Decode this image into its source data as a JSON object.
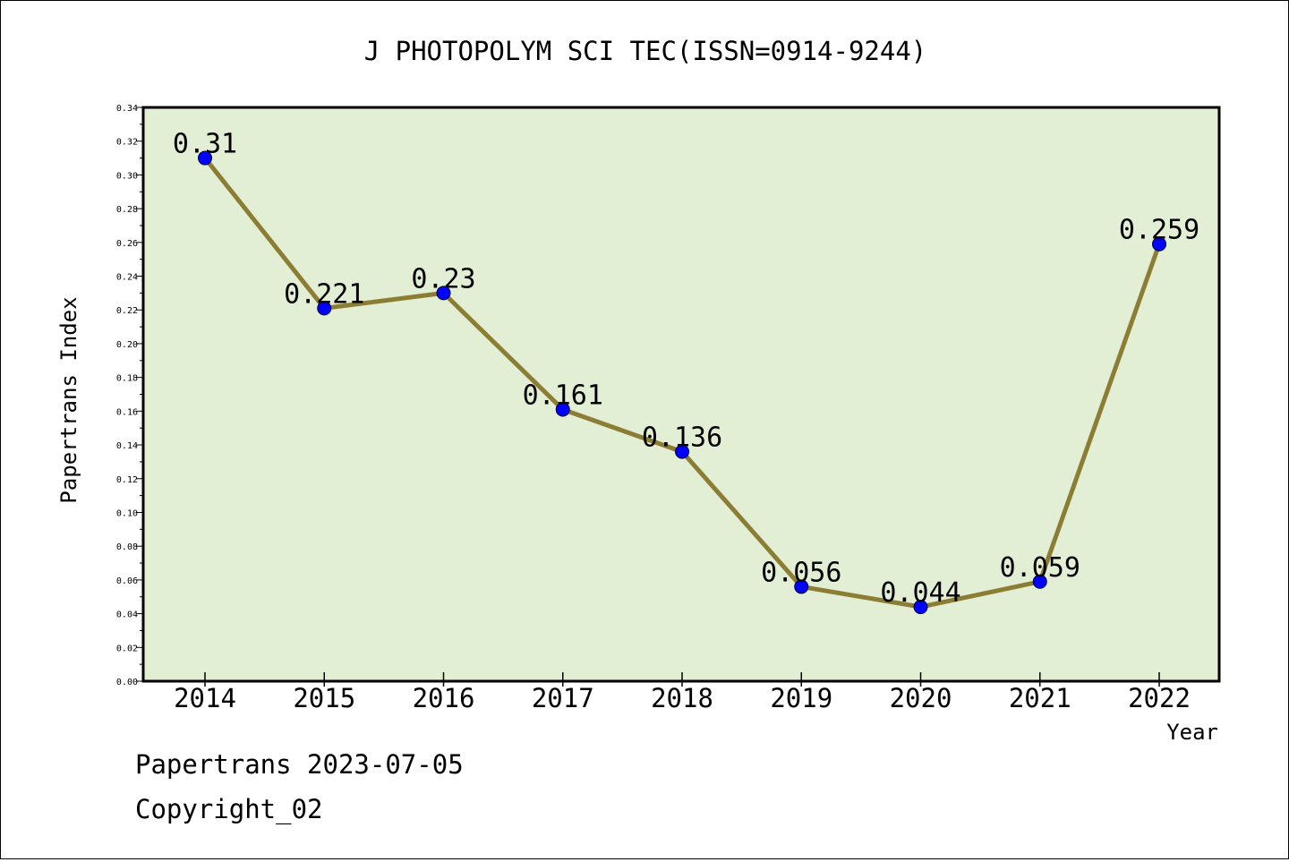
{
  "chart_data": {
    "type": "line",
    "title": "J PHOTOPOLYM SCI TEC(ISSN=0914-9244)",
    "xlabel": "Year",
    "ylabel": "Papertrans Index",
    "categories": [
      "2014",
      "2015",
      "2016",
      "2017",
      "2018",
      "2019",
      "2020",
      "2021",
      "2022"
    ],
    "values": [
      0.31,
      0.221,
      0.23,
      0.161,
      0.136,
      0.056,
      0.044,
      0.059,
      0.259
    ],
    "data_labels": [
      "0.31",
      "0.221",
      "0.23",
      "0.161",
      "0.136",
      "0.056",
      "0.044",
      "0.059",
      "0.259"
    ],
    "ylim": [
      0,
      0.34
    ],
    "yticks": [
      "0.00",
      "0.02",
      "0.04",
      "0.06",
      "0.08",
      "0.10",
      "0.12",
      "0.14",
      "0.16",
      "0.18",
      "0.20",
      "0.22",
      "0.24",
      "0.26",
      "0.28",
      "0.30",
      "0.32",
      "0.34"
    ],
    "grid": false,
    "legend": "none",
    "colors": {
      "plot_background": "#e2efd4",
      "line": "#8c7d35",
      "marker": "#0000ff"
    }
  },
  "footer": {
    "source": "Papertrans 2023-07-05",
    "copyright": "Copyright_02"
  }
}
